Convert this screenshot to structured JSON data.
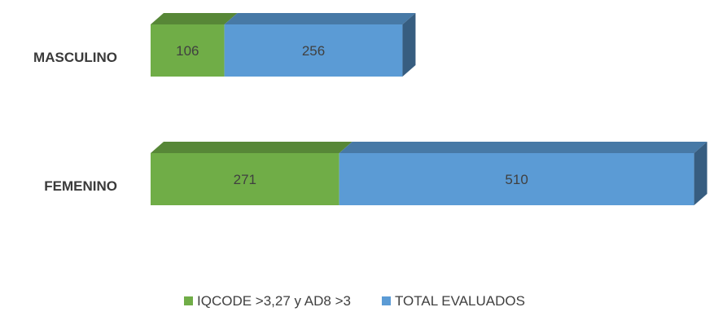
{
  "chart_data": {
    "type": "bar",
    "orientation": "horizontal",
    "stacked": true,
    "style": "3d",
    "categories": [
      "MASCULINO",
      "FEMENINO"
    ],
    "series": [
      {
        "name": "IQCODE >3,27 y AD8 >3",
        "values": [
          106,
          271
        ],
        "color": "#70ad47"
      },
      {
        "name": "TOTAL EVALUADOS",
        "values": [
          256,
          510
        ],
        "color": "#5b9bd5"
      }
    ],
    "legend_position": "bottom",
    "grid": false
  }
}
